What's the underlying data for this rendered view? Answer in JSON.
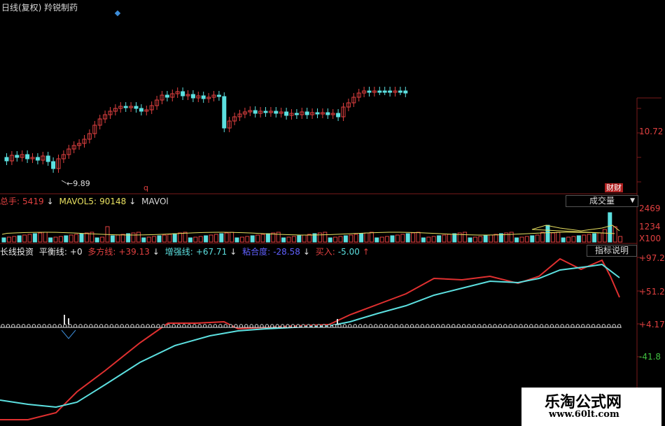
{
  "header": {
    "title": "日线(复权)  羚锐制药"
  },
  "price_panel": {
    "low_label": "←9.89",
    "right_tick": "10.72",
    "caizhu_badge": "财财",
    "marker": "q"
  },
  "volume_panel": {
    "items": [
      {
        "label": "总手:",
        "value": "5419",
        "arrow": "↓",
        "label_color": "#e04040",
        "value_color": "#e04040"
      },
      {
        "label": "MAVOL5:",
        "value": "90148",
        "arrow": "↓",
        "label_color": "#e8e060",
        "value_color": "#e8e060"
      },
      {
        "label": "MAVOl",
        "value": "",
        "arrow": "",
        "label_color": "#d8d8d8",
        "value_color": "#d8d8d8"
      }
    ],
    "selector_value": "成交量",
    "ticks": [
      "2469",
      "1234",
      "X100"
    ]
  },
  "indicator_panel": {
    "name": "长线投资",
    "items": [
      {
        "label": "平衡线:",
        "value": "+0",
        "arrow": "",
        "color": "#e8e8e8"
      },
      {
        "label": "多方线:",
        "value": "+39.13",
        "arrow": "↓",
        "color": "#e04040"
      },
      {
        "label": "增强线:",
        "value": "+67.71",
        "arrow": "↓",
        "color": "#5ce0e0"
      },
      {
        "label": "粘合度:",
        "value": "-28.58",
        "arrow": "↓",
        "color": "#6060ff"
      },
      {
        "label": "买入:",
        "value": "-5.00",
        "arrow": "↑",
        "color": "#e04040"
      }
    ],
    "button_label": "指标说明",
    "ticks": [
      {
        "text": "+97.2",
        "color": "#e04040"
      },
      {
        "text": "+51.2",
        "color": "#e04040"
      },
      {
        "text": "+4.17",
        "color": "#e04040"
      },
      {
        "text": "-41.8",
        "color": "#40c040"
      }
    ]
  },
  "watermark": {
    "line1": "乐淘公式网",
    "line2": "www.60lt.com"
  },
  "colors": {
    "up": "#e04040",
    "down": "#5ce0e0",
    "grid": "#7a1a1a",
    "ma": "#e8e060"
  }
}
